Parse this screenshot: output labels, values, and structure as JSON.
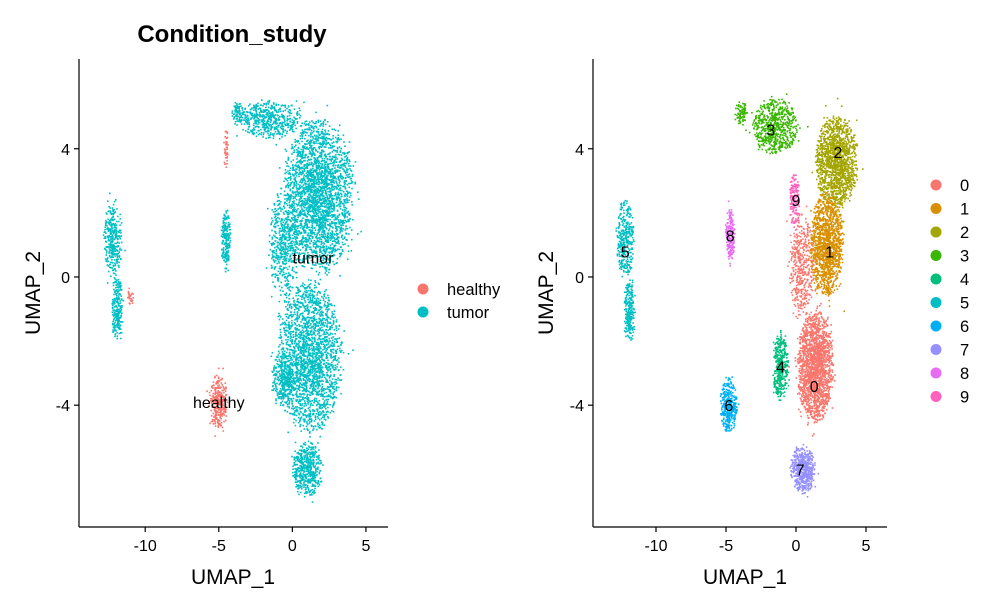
{
  "chart_data": [
    {
      "type": "scatter",
      "title": "Condition_study",
      "xlabel": "UMAP_1",
      "ylabel": "UMAP_2",
      "xlim": [
        -14.5,
        6.5
      ],
      "ylim": [
        -7.8,
        6.8
      ],
      "xticks": [
        -10,
        -5,
        0,
        5
      ],
      "xtick_labels": [
        "-10",
        "-5",
        "0",
        "5"
      ],
      "yticks": [
        4,
        0,
        -4
      ],
      "ytick_labels": [
        "4",
        "0",
        "-4"
      ],
      "grid": false,
      "legend_position": "right",
      "series": [
        {
          "name": "healthy",
          "color": "#F8766D"
        },
        {
          "name": "tumor",
          "color": "#00BFC4"
        }
      ],
      "annotations": [
        {
          "text": "tumor",
          "x": 1.4,
          "y": 0.6
        },
        {
          "text": "healthy",
          "x": -5.0,
          "y": -3.9
        }
      ],
      "regions": [
        {
          "series": "tumor",
          "cx": 1.8,
          "cy": 2.5,
          "sx": 2.2,
          "sy": 2.2,
          "n": 2600
        },
        {
          "series": "tumor",
          "cx": 1.2,
          "cy": -2.5,
          "sx": 2.0,
          "sy": 2.2,
          "n": 2100
        },
        {
          "series": "tumor",
          "cx": 1.0,
          "cy": -6.0,
          "sx": 0.9,
          "sy": 0.8,
          "n": 500
        },
        {
          "series": "tumor",
          "cx": -1.5,
          "cy": 4.9,
          "sx": 2.0,
          "sy": 0.55,
          "n": 500
        },
        {
          "series": "tumor",
          "cx": -3.7,
          "cy": 5.1,
          "sx": 0.4,
          "sy": 0.35,
          "n": 80
        },
        {
          "series": "tumor",
          "cx": -0.6,
          "cy": 1.0,
          "sx": 0.9,
          "sy": 1.6,
          "n": 500
        },
        {
          "series": "tumor",
          "cx": -0.6,
          "cy": -3.2,
          "sx": 0.7,
          "sy": 0.8,
          "n": 300
        },
        {
          "series": "tumor",
          "cx": -4.5,
          "cy": 1.2,
          "sx": 0.3,
          "sy": 0.9,
          "n": 200
        },
        {
          "series": "tumor",
          "cx": -12.2,
          "cy": 1.2,
          "sx": 0.6,
          "sy": 1.1,
          "n": 320
        },
        {
          "series": "tumor",
          "cx": -11.9,
          "cy": -0.8,
          "sx": 0.35,
          "sy": 0.8,
          "n": 150
        },
        {
          "series": "tumor",
          "cx": -11.9,
          "cy": -1.5,
          "sx": 0.35,
          "sy": 0.45,
          "n": 80
        },
        {
          "series": "healthy",
          "cx": -4.5,
          "cy": 4.0,
          "sx": 0.15,
          "sy": 0.6,
          "n": 40
        },
        {
          "series": "healthy",
          "cx": -11.0,
          "cy": -0.6,
          "sx": 0.2,
          "sy": 0.25,
          "n": 25
        },
        {
          "series": "healthy",
          "cx": -5.0,
          "cy": -3.9,
          "sx": 0.55,
          "sy": 0.8,
          "n": 320
        }
      ]
    },
    {
      "type": "scatter",
      "title": "",
      "xlabel": "UMAP_1",
      "ylabel": "UMAP_2",
      "xlim": [
        -14.5,
        6.5
      ],
      "ylim": [
        -7.8,
        6.8
      ],
      "xticks": [
        -10,
        -5,
        0,
        5
      ],
      "xtick_labels": [
        "-10",
        "-5",
        "0",
        "5"
      ],
      "yticks": [
        4,
        0,
        -4
      ],
      "ytick_labels": [
        "4",
        "0",
        "-4"
      ],
      "grid": false,
      "legend_position": "right",
      "series": [
        {
          "name": "0",
          "color": "#F8766D"
        },
        {
          "name": "1",
          "color": "#D89000"
        },
        {
          "name": "2",
          "color": "#A3A500"
        },
        {
          "name": "3",
          "color": "#39B600"
        },
        {
          "name": "4",
          "color": "#00BF7D"
        },
        {
          "name": "5",
          "color": "#00BFC4"
        },
        {
          "name": "6",
          "color": "#00B0F6"
        },
        {
          "name": "7",
          "color": "#9590FF"
        },
        {
          "name": "8",
          "color": "#E76BF3"
        },
        {
          "name": "9",
          "color": "#FF62BC"
        }
      ],
      "annotations": [
        {
          "text": "3",
          "x": -1.8,
          "y": 4.6
        },
        {
          "text": "2",
          "x": 3.0,
          "y": 3.9
        },
        {
          "text": "9",
          "x": 0.0,
          "y": 2.4
        },
        {
          "text": "8",
          "x": -4.7,
          "y": 1.3
        },
        {
          "text": "1",
          "x": 2.4,
          "y": 0.8
        },
        {
          "text": "5",
          "x": -12.2,
          "y": 0.8
        },
        {
          "text": "4",
          "x": -1.1,
          "y": -2.8
        },
        {
          "text": "0",
          "x": 1.3,
          "y": -3.4
        },
        {
          "text": "6",
          "x": -4.8,
          "y": -4.0
        },
        {
          "text": "7",
          "x": 0.3,
          "y": -6.0
        }
      ],
      "regions": [
        {
          "series": "3",
          "cx": -1.5,
          "cy": 4.7,
          "sx": 1.5,
          "sy": 0.8,
          "n": 650
        },
        {
          "series": "3",
          "cx": -3.9,
          "cy": 5.1,
          "sx": 0.4,
          "sy": 0.35,
          "n": 80
        },
        {
          "series": "2",
          "cx": 2.9,
          "cy": 3.6,
          "sx": 1.4,
          "sy": 1.3,
          "n": 1400
        },
        {
          "series": "1",
          "cx": 2.2,
          "cy": 1.0,
          "sx": 1.1,
          "sy": 1.5,
          "n": 1300
        },
        {
          "series": "9",
          "cx": -0.1,
          "cy": 2.4,
          "sx": 0.35,
          "sy": 0.8,
          "n": 150
        },
        {
          "series": "8",
          "cx": -4.7,
          "cy": 1.3,
          "sx": 0.3,
          "sy": 0.8,
          "n": 200
        },
        {
          "series": "5",
          "cx": -12.2,
          "cy": 1.2,
          "sx": 0.6,
          "sy": 1.1,
          "n": 320
        },
        {
          "series": "5",
          "cx": -11.9,
          "cy": -0.8,
          "sx": 0.35,
          "sy": 0.8,
          "n": 150
        },
        {
          "series": "5",
          "cx": -11.9,
          "cy": -1.5,
          "sx": 0.35,
          "sy": 0.45,
          "n": 80
        },
        {
          "series": "4",
          "cx": -1.1,
          "cy": -2.8,
          "sx": 0.5,
          "sy": 1.0,
          "n": 380
        },
        {
          "series": "0",
          "cx": 1.4,
          "cy": -2.8,
          "sx": 1.2,
          "sy": 1.6,
          "n": 1800
        },
        {
          "series": "0",
          "cx": 0.4,
          "cy": 0.3,
          "sx": 0.8,
          "sy": 1.5,
          "n": 400
        },
        {
          "series": "6",
          "cx": -4.8,
          "cy": -4.0,
          "sx": 0.55,
          "sy": 0.8,
          "n": 360
        },
        {
          "series": "7",
          "cx": 0.5,
          "cy": -6.0,
          "sx": 0.8,
          "sy": 0.7,
          "n": 520
        }
      ]
    }
  ]
}
